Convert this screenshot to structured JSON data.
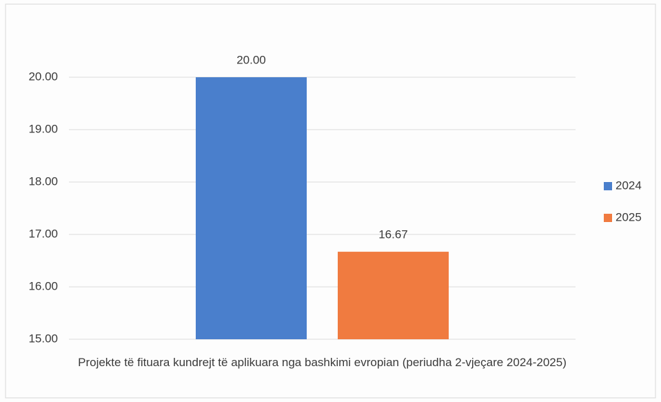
{
  "chart_data": {
    "type": "bar",
    "categories": [
      "Projekte të fituara kundrejt të aplikuara nga bashkimi evropian (periudha 2-vjeçare 2024-2025)"
    ],
    "series": [
      {
        "name": "2024",
        "color": "#4a7fcc",
        "values": [
          20
        ],
        "value_labels": [
          "20.00"
        ]
      },
      {
        "name": "2025",
        "color": "#f07b40",
        "values": [
          16.67
        ],
        "value_labels": [
          "16.67"
        ]
      }
    ],
    "ylim": [
      15,
      20
    ],
    "yticks": [
      {
        "value": 15,
        "label": "15.00"
      },
      {
        "value": 16,
        "label": "16.00"
      },
      {
        "value": 17,
        "label": "17.00"
      },
      {
        "value": 18,
        "label": "18.00"
      },
      {
        "value": 19,
        "label": "19.00"
      },
      {
        "value": 20,
        "label": "20.00"
      }
    ],
    "grid": true,
    "legend": "right"
  }
}
